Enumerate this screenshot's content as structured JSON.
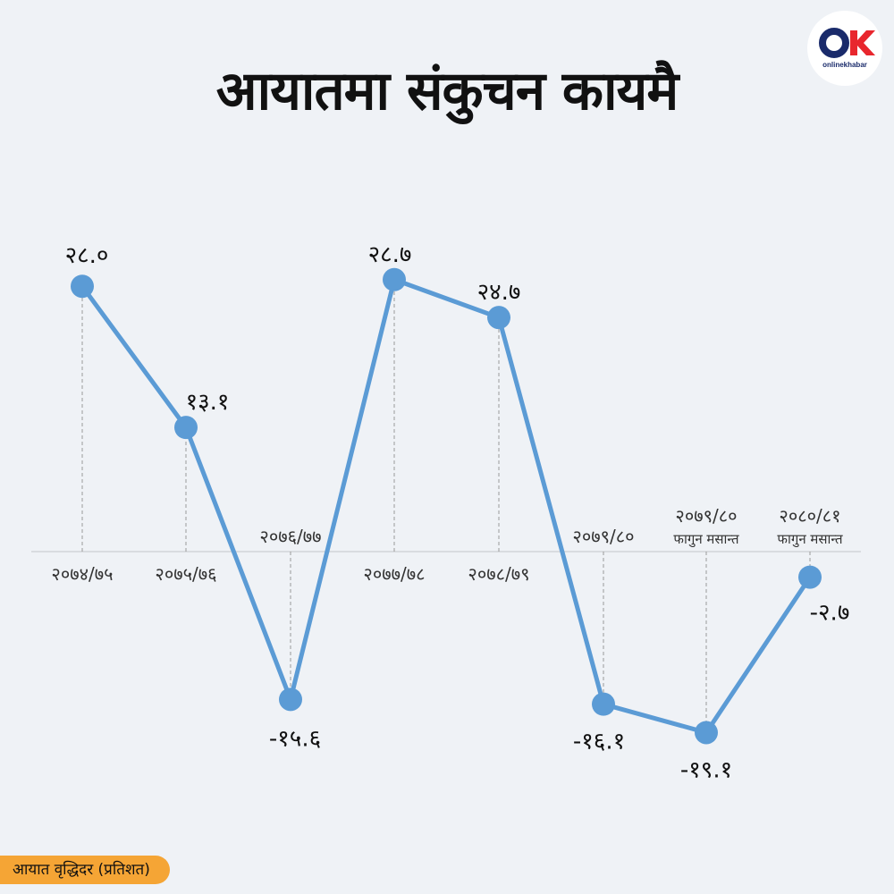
{
  "title": "आयातमा संकुचन कायमै",
  "logo": {
    "text": "onlinekhabar"
  },
  "legend": {
    "label": "आयात वृद्धिदर  (प्रतिशत)"
  },
  "colors": {
    "line": "#5b9bd5",
    "background": "#eff2f6",
    "legend": "#f5a535"
  },
  "chart_data": {
    "type": "line",
    "title": "आयातमा संकुचन कायमै",
    "ylabel": "आयात वृद्धिदर  (प्रतिशत)",
    "categories": [
      "२०७४/७५",
      "२०७५/७६",
      "२०७६/७७",
      "२०७७/७८",
      "२०७८/७९",
      "२०७९/८०",
      "२०७९/८० फागुन मसान्त",
      "२०८०/८१ फागुन मसान्त"
    ],
    "category_lines": [
      [
        "२०७४/७५"
      ],
      [
        "२०७५/७६"
      ],
      [
        "२०७६/७७"
      ],
      [
        "२०७७/७८"
      ],
      [
        "२०७८/७९"
      ],
      [
        "२०७९/८०"
      ],
      [
        "२०७९/८०",
        "फागुन मसान्त"
      ],
      [
        "२०८०/८१",
        "फागुन मसान्त"
      ]
    ],
    "values": [
      28.0,
      13.1,
      -15.6,
      28.7,
      24.7,
      -16.1,
      -19.1,
      -2.7
    ],
    "value_labels": [
      "२८.०",
      "१३.१",
      "-१५.६",
      "२८.७",
      "२४.७",
      "-१६.१",
      "-१९.१",
      "-२.७"
    ],
    "grid": false,
    "legend": "bottom-left"
  }
}
